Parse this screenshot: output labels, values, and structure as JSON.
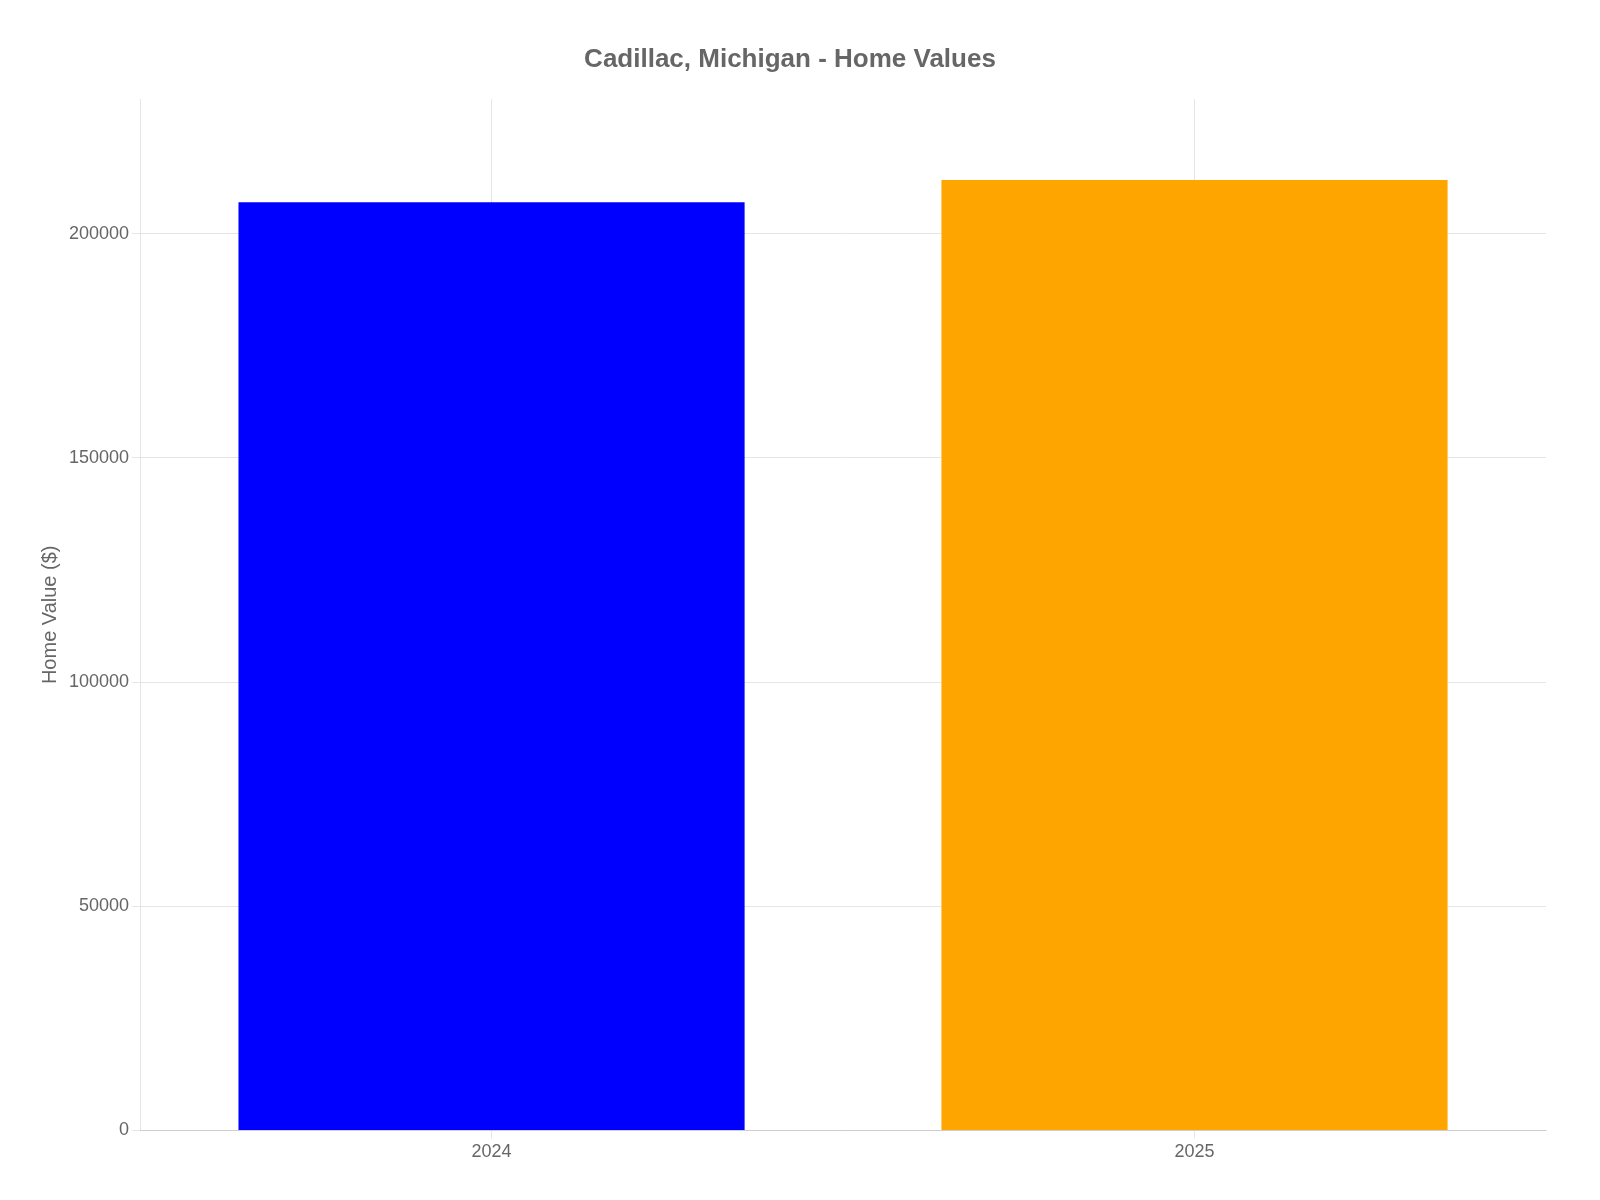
{
  "chart_data": {
    "type": "bar",
    "title": "Cadillac, Michigan - Home Values",
    "categories": [
      "2024",
      "2025"
    ],
    "values": [
      207000,
      212000
    ],
    "colors": [
      "#0000ff",
      "#ffa500"
    ],
    "ylabel": "Home Value ($)",
    "ylim": [
      0,
      230000
    ],
    "yticks": [
      0,
      50000,
      100000,
      150000,
      200000
    ],
    "grid": true
  }
}
